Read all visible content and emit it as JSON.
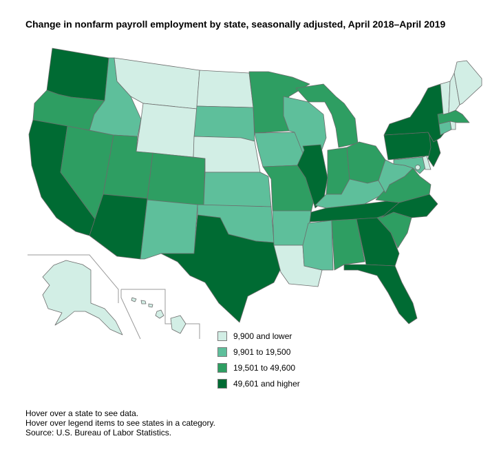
{
  "title": "Change in nonfarm payroll employment by state, seasonally adjusted, April 2018–April 2019",
  "colors": {
    "c1": "#d2eee5",
    "c2": "#5ebf9b",
    "c3": "#2e9e62",
    "c4": "#006b33",
    "border": "#6b6b6b"
  },
  "legend": [
    {
      "label": "9,900 and lower",
      "cat": "c1"
    },
    {
      "label": "9,901 to 19,500",
      "cat": "c2"
    },
    {
      "label": "19,501 to 49,600",
      "cat": "c3"
    },
    {
      "label": "49,601 and higher",
      "cat": "c4"
    }
  ],
  "notes": [
    "Hover over a state to see data.",
    "Hover over legend items to see states in a category.",
    "Source: U.S. Bureau of Labor Statistics."
  ],
  "states": {
    "WA": "c4",
    "OR": "c3",
    "CA": "c4",
    "NV": "c3",
    "ID": "c2",
    "MT": "c1",
    "WY": "c1",
    "UT": "c3",
    "AZ": "c4",
    "CO": "c3",
    "NM": "c2",
    "ND": "c1",
    "SD": "c2",
    "NE": "c1",
    "KS": "c2",
    "OK": "c2",
    "TX": "c4",
    "MN": "c3",
    "IA": "c2",
    "MO": "c3",
    "AR": "c2",
    "LA": "c1",
    "WI": "c2",
    "IL": "c4",
    "MI": "c3",
    "IN": "c3",
    "OH": "c3",
    "KY": "c2",
    "TN": "c4",
    "MS": "c2",
    "AL": "c3",
    "GA": "c4",
    "FL": "c4",
    "SC": "c3",
    "NC": "c4",
    "VA": "c3",
    "WV": "c2",
    "MD": "c2",
    "DE": "c1",
    "NJ": "c4",
    "PA": "c4",
    "NY": "c4",
    "CT": "c2",
    "RI": "c1",
    "MA": "c3",
    "VT": "c1",
    "NH": "c1",
    "ME": "c1",
    "DC": "c1",
    "AK": "c1",
    "HI": "c1"
  }
}
